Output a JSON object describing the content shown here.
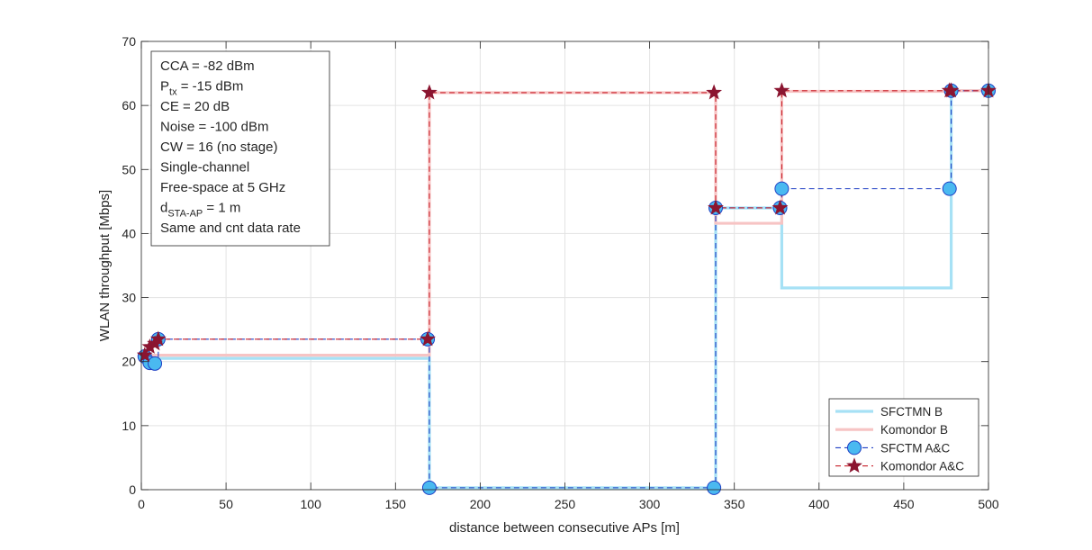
{
  "chart_data": {
    "type": "line",
    "title": "",
    "xlabel": "distance between consecutive APs [m]",
    "ylabel": "WLAN throughput [Mbps]",
    "xlim": [
      0,
      500
    ],
    "ylim": [
      0,
      70
    ],
    "xticks": [
      0,
      50,
      100,
      150,
      200,
      250,
      300,
      350,
      400,
      450,
      500
    ],
    "yticks": [
      0,
      10,
      20,
      30,
      40,
      50,
      60,
      70
    ],
    "grid": true,
    "legend_position": "bottom-right",
    "annotation": {
      "lines": [
        {
          "main": "CCA = -82 dBm"
        },
        {
          "main": "P",
          "sub": "tx",
          "rest": " = -15 dBm"
        },
        {
          "main": "CE = 20 dB"
        },
        {
          "main": "Noise = -100 dBm"
        },
        {
          "main": "CW = 16 (no stage)"
        },
        {
          "main": "Single-channel"
        },
        {
          "main": "Free-space at 5 GHz"
        },
        {
          "main": "d",
          "sub": "STA-AP",
          "rest": " = 1 m"
        },
        {
          "main": "Same and cnt data rate"
        }
      ]
    },
    "series": [
      {
        "name": "SFCTMN B",
        "color": "#a6e1f5",
        "style": "solid-thick",
        "marker": "none",
        "step": true,
        "x": [
          2,
          5,
          8,
          10,
          169,
          170,
          338,
          339,
          377,
          378,
          477,
          478,
          500
        ],
        "y": [
          20.5,
          20.5,
          20.5,
          20.5,
          20.5,
          0.3,
          0.3,
          44,
          44,
          31.5,
          31.5,
          62.3,
          62.3
        ]
      },
      {
        "name": "Komondor B",
        "color": "#f7c4c4",
        "style": "solid-thick",
        "marker": "none",
        "step": true,
        "x": [
          2,
          5,
          8,
          10,
          169,
          170,
          338,
          339,
          377,
          378,
          477,
          478,
          500
        ],
        "y": [
          21,
          21,
          21,
          21,
          21,
          62,
          62,
          41.6,
          41.6,
          62.2,
          62.2,
          62.3,
          62.3
        ]
      },
      {
        "name": "SFCTM A&C",
        "color": "#1f3fc4",
        "marker_color": "#4ab9f0",
        "style": "dashed",
        "marker": "circle",
        "step": true,
        "x": [
          2,
          5,
          8,
          10,
          169,
          170,
          338,
          339,
          377,
          378,
          477,
          478,
          500
        ],
        "y": [
          20.8,
          19.8,
          19.7,
          23.5,
          23.5,
          0.3,
          0.3,
          44,
          44,
          47,
          47,
          62.3,
          62.3
        ]
      },
      {
        "name": "Komondor A&C",
        "color": "#c8202a",
        "marker_color": "#8b1530",
        "style": "dashed",
        "marker": "star",
        "step": true,
        "x": [
          2,
          5,
          8,
          10,
          169,
          170,
          338,
          339,
          377,
          378,
          477,
          478,
          500
        ],
        "y": [
          21,
          22.3,
          22.8,
          23.5,
          23.5,
          62,
          62,
          44,
          44,
          62.3,
          62.3,
          62.3,
          62.3
        ]
      }
    ]
  }
}
